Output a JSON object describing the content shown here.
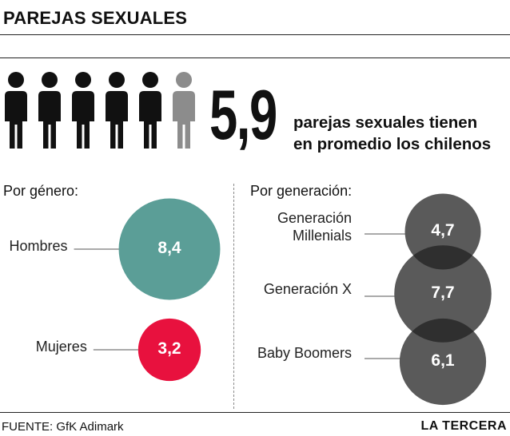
{
  "header": {
    "title": "PAREJAS SEXUALES"
  },
  "headline": {
    "value": "5,9",
    "text_line1": "parejas sexuales tienen",
    "text_line2": "en promedio los chilenos",
    "icon": "person-icon",
    "icon_count": 6,
    "icon_colors": {
      "full": "#111111",
      "partial": "#8c8c8c"
    }
  },
  "chart_data": [
    {
      "type": "bubble",
      "title": "Por género:",
      "categories": [
        "Hombres",
        "Mujeres"
      ],
      "values": [
        8.4,
        3.2
      ],
      "value_labels": [
        "8,4",
        "3,2"
      ],
      "colors": [
        "#5b9e97",
        "#e8113e"
      ]
    },
    {
      "type": "bubble",
      "title": "Por generación:",
      "categories": [
        "Generación Millenials",
        "Generación X",
        "Baby Boomers"
      ],
      "category_lines": [
        [
          "Generación",
          "Millenials"
        ],
        [
          "Generación X"
        ],
        [
          "Baby Boomers"
        ]
      ],
      "values": [
        4.7,
        7.7,
        6.1
      ],
      "value_labels": [
        "4,7",
        "7,7",
        "6,1"
      ],
      "colors": [
        "#5a5a5a",
        "#5a5a5a",
        "#5a5a5a"
      ],
      "overlap_color": "#2f2f2f"
    }
  ],
  "footer": {
    "source": "FUENTE: GfK Adimark",
    "brand": "LA TERCERA"
  }
}
